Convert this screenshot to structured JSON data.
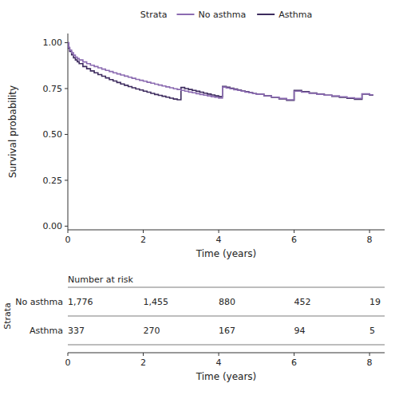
{
  "chart_data": [
    {
      "type": "step",
      "xlabel": "Time (years)",
      "ylabel": "Survival probability",
      "xlim": [
        0,
        8.4
      ],
      "ylim": [
        -0.02,
        1.05
      ],
      "xticks": [
        0,
        2,
        4,
        6,
        8
      ],
      "yticks": [
        {
          "value": 0.0,
          "label": "0.00"
        },
        0.25,
        {
          "value": 0.5,
          "label": "0.50"
        },
        0.75,
        {
          "value": 1.0,
          "label": "1.00"
        }
      ],
      "grid": false,
      "legend": "top",
      "legend_title": "Strata",
      "x": [
        0,
        0.02,
        0.05,
        0.1,
        0.15,
        0.2,
        0.25,
        0.3,
        0.4,
        0.5,
        0.6,
        0.7,
        0.8,
        0.9,
        1.0,
        1.1,
        1.2,
        1.3,
        1.4,
        1.5,
        1.6,
        1.7,
        1.8,
        1.9,
        2.0,
        2.1,
        2.2,
        2.3,
        2.4,
        2.5,
        2.6,
        2.7,
        2.8,
        2.9,
        3.0,
        3.1,
        3.2,
        3.3,
        3.4,
        3.5,
        3.6,
        3.7,
        3.8,
        3.9,
        4.0,
        4.1,
        4.2,
        4.3,
        4.4,
        4.5,
        4.6,
        4.7,
        4.8,
        4.9,
        5.0,
        5.2,
        5.4,
        5.6,
        5.8,
        6.0,
        6.2,
        6.4,
        6.6,
        6.8,
        7.0,
        7.2,
        7.4,
        7.6,
        7.8,
        8.0,
        8.1
      ],
      "series": [
        {
          "name": "No asthma",
          "color": "#8B6BB1",
          "values": [
            1.0,
            0.975,
            0.96,
            0.945,
            0.932,
            0.922,
            0.914,
            0.906,
            0.895,
            0.886,
            0.877,
            0.87,
            0.863,
            0.856,
            0.849,
            0.843,
            0.836,
            0.83,
            0.824,
            0.818,
            0.812,
            0.806,
            0.8,
            0.795,
            0.79,
            0.784,
            0.779,
            0.774,
            0.769,
            0.764,
            0.759,
            0.754,
            0.749,
            0.745,
            0.74,
            0.736,
            0.731,
            0.727,
            0.722,
            0.718,
            0.714,
            0.71,
            0.706,
            0.702,
            0.698,
            0.758,
            0.753,
            0.749,
            0.744,
            0.74,
            0.736,
            0.731,
            0.727,
            0.723,
            0.719,
            0.711,
            0.703,
            0.696,
            0.689,
            0.736,
            0.73,
            0.724,
            0.719,
            0.714,
            0.709,
            0.705,
            0.7,
            0.696,
            0.721,
            0.716,
            0.716
          ]
        },
        {
          "name": "Asthma",
          "color": "#3D2B5E",
          "values": [
            1.0,
            0.97,
            0.952,
            0.934,
            0.918,
            0.906,
            0.896,
            0.886,
            0.87,
            0.858,
            0.846,
            0.836,
            0.826,
            0.817,
            0.808,
            0.799,
            0.791,
            0.783,
            0.775,
            0.768,
            0.761,
            0.754,
            0.748,
            0.742,
            0.736,
            0.73,
            0.724,
            0.718,
            0.713,
            0.708,
            0.703,
            0.698,
            0.693,
            0.689,
            0.756,
            0.75,
            0.745,
            0.74,
            0.735,
            0.73,
            0.725,
            0.72,
            0.715,
            0.71,
            0.706,
            0.762,
            0.757,
            0.752,
            0.747,
            0.742,
            0.737,
            0.733,
            0.728,
            0.723,
            0.719,
            0.71,
            0.702,
            0.694,
            0.686,
            0.74,
            0.733,
            0.726,
            0.72,
            0.714,
            0.708,
            0.702,
            0.697,
            0.691,
            0.72,
            0.714,
            0.714
          ]
        }
      ]
    },
    {
      "type": "table",
      "title": "Number at risk",
      "xlabel": "Time (years)",
      "ylabel": "Strata",
      "xlim": [
        0,
        8.4
      ],
      "xticks": [
        0,
        2,
        4,
        6,
        8
      ],
      "x": [
        0,
        2,
        4,
        6,
        8
      ],
      "series": [
        {
          "name": "No asthma",
          "values": [
            1776,
            1455,
            880,
            452,
            19
          ],
          "value_labels": [
            "1,776",
            "1,455",
            "880",
            "452",
            "19"
          ]
        },
        {
          "name": "Asthma",
          "values": [
            337,
            270,
            167,
            94,
            5
          ],
          "value_labels": [
            "337",
            "270",
            "167",
            "94",
            "5"
          ]
        }
      ]
    }
  ]
}
